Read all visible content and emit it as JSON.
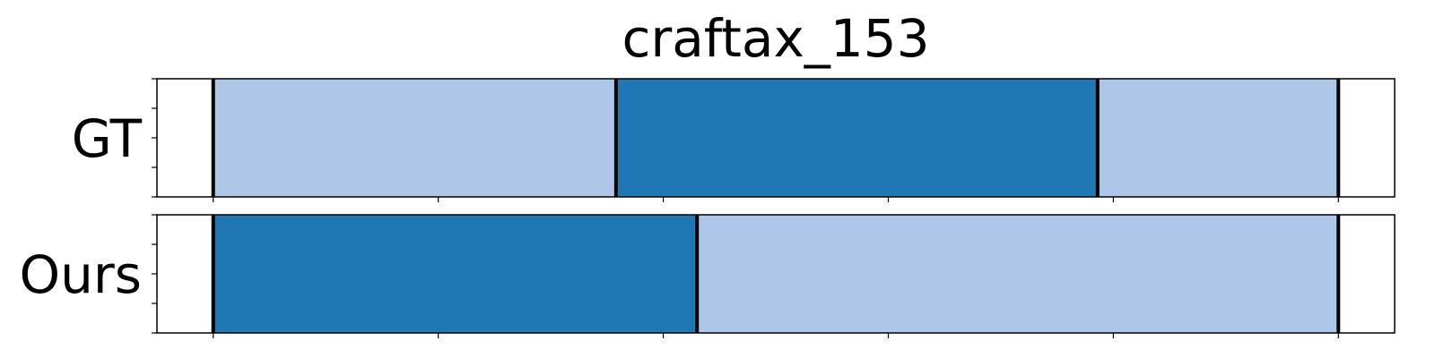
{
  "chart_data": {
    "type": "segment_timeline",
    "title": "craftax_153",
    "x_range": [
      -0.25,
      5.25
    ],
    "x_ticks": [
      0,
      1,
      2,
      3,
      4,
      5
    ],
    "y_ticks_per_row": 5,
    "colors": {
      "light": "#aec7e8",
      "dark": "#1f77b4",
      "boundary": "#000000",
      "frame": "#000000"
    },
    "rows": [
      {
        "label": "GT",
        "segments": [
          {
            "start": 0.0,
            "end": 1.79,
            "color": "light"
          },
          {
            "start": 1.79,
            "end": 3.93,
            "color": "dark"
          },
          {
            "start": 3.93,
            "end": 5.0,
            "color": "light"
          }
        ],
        "boundaries": [
          0.0,
          1.79,
          3.93,
          5.0
        ]
      },
      {
        "label": "Ours",
        "segments": [
          {
            "start": 0.0,
            "end": 2.15,
            "color": "dark"
          },
          {
            "start": 2.15,
            "end": 5.0,
            "color": "light"
          }
        ],
        "boundaries": [
          0.0,
          2.15,
          5.0
        ]
      }
    ]
  }
}
